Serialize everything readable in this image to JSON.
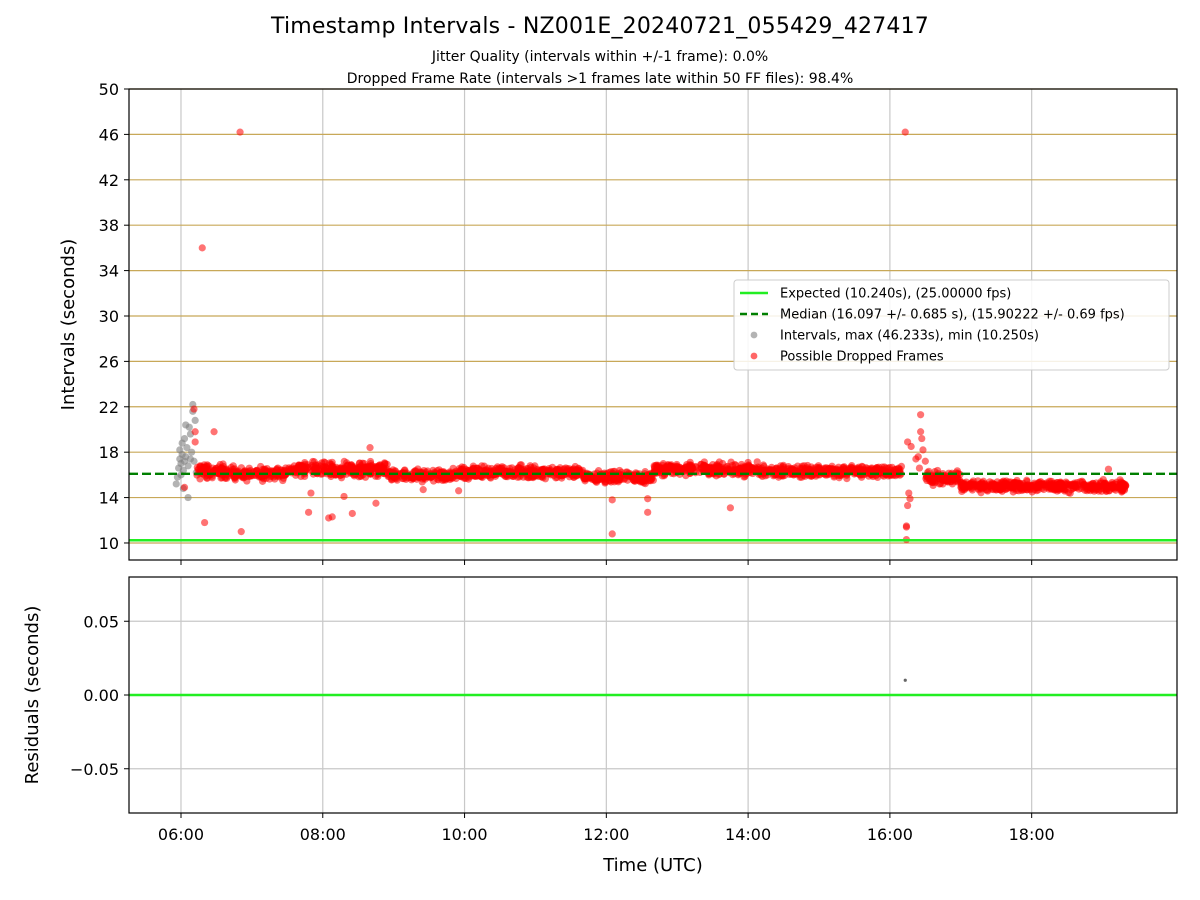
{
  "title": "Timestamp Intervals - NZ001E_20240721_055429_427417",
  "subtitle_lines": [
    "Jitter Quality (intervals within +/-1 frame): 0.0%",
    "Dropped Frame Rate (intervals >1 frames late within 50 FF files): 98.4%"
  ],
  "colors": {
    "expected": "#22ee22",
    "median": "#007f00",
    "intervals": "#808080",
    "dropped": "#ff0000",
    "hgrid_top": "#c8a858",
    "grid": "#c8c8c8"
  },
  "chart_data": [
    {
      "type": "scatter",
      "panel": "top",
      "ylabel": "Intervals (seconds)",
      "ylim": [
        8.5,
        50
      ],
      "yticks": [
        "10",
        "14",
        "18",
        "22",
        "26",
        "30",
        "34",
        "38",
        "42",
        "46",
        "50"
      ],
      "xlim": [
        "05:16",
        "20:03"
      ],
      "xticks": [
        "06:00",
        "08:00",
        "10:00",
        "12:00",
        "14:00",
        "16:00",
        "18:00"
      ],
      "grid": true,
      "legend_position": "center-right",
      "series": [
        {
          "name": "Expected (10.240s), (25.00000 fps)",
          "kind": "hline",
          "y": 10.24
        },
        {
          "name": "Median (16.097 +/- 0.685 s), (15.90222 +/- 0.69 fps)",
          "kind": "dashed-hline",
          "y": 16.097
        },
        {
          "name": "Intervals, max (46.233s), min (10.250s)",
          "kind": "points",
          "points": [
            [
              "05:56",
              15.2
            ],
            [
              "05:57",
              15.8
            ],
            [
              "05:58",
              16.6
            ],
            [
              "05:59",
              17.4
            ],
            [
              "05:59",
              18.2
            ],
            [
              "06:00",
              16.0
            ],
            [
              "06:00",
              17.0
            ],
            [
              "06:01",
              17.8
            ],
            [
              "06:01",
              18.8
            ],
            [
              "06:02",
              16.4
            ],
            [
              "06:02",
              14.8
            ],
            [
              "06:03",
              17.2
            ],
            [
              "06:03",
              19.2
            ],
            [
              "06:04",
              20.4
            ],
            [
              "06:04",
              17.6
            ],
            [
              "06:05",
              18.4
            ],
            [
              "06:06",
              16.8
            ],
            [
              "06:06",
              14.0
            ],
            [
              "06:07",
              20.2
            ],
            [
              "06:08",
              19.6
            ],
            [
              "06:08",
              17.4
            ],
            [
              "06:09",
              18.0
            ],
            [
              "06:10",
              22.2
            ],
            [
              "06:10",
              21.6
            ],
            [
              "06:11",
              17.2
            ],
            [
              "06:12",
              20.8
            ],
            [
              "06:13",
              16.2
            ]
          ]
        },
        {
          "name": "Possible Dropped Frames",
          "kind": "points",
          "dense_band": [
            {
              "from": "06:13",
              "to": "06:45",
              "center": 16.3,
              "spread": 0.55
            },
            {
              "from": "06:45",
              "to": "07:30",
              "center": 16.1,
              "spread": 0.5
            },
            {
              "from": "07:30",
              "to": "08:55",
              "center": 16.5,
              "spread": 0.55
            },
            {
              "from": "08:55",
              "to": "09:50",
              "center": 15.9,
              "spread": 0.45
            },
            {
              "from": "09:50",
              "to": "11:40",
              "center": 16.2,
              "spread": 0.5
            },
            {
              "from": "11:40",
              "to": "12:40",
              "center": 15.8,
              "spread": 0.5
            },
            {
              "from": "12:40",
              "to": "14:10",
              "center": 16.5,
              "spread": 0.5
            },
            {
              "from": "14:10",
              "to": "16:10",
              "center": 16.3,
              "spread": 0.45
            },
            {
              "from": "16:30",
              "to": "17:00",
              "center": 15.7,
              "spread": 0.5
            },
            {
              "from": "17:00",
              "to": "19:20",
              "center": 15.0,
              "spread": 0.45
            }
          ],
          "outliers": [
            [
              "06:50",
              46.2
            ],
            [
              "06:18",
              36.0
            ],
            [
              "06:11",
              21.8
            ],
            [
              "06:12",
              19.8
            ],
            [
              "06:12",
              18.9
            ],
            [
              "06:28",
              19.8
            ],
            [
              "06:20",
              11.8
            ],
            [
              "06:51",
              11.0
            ],
            [
              "06:03",
              14.9
            ],
            [
              "07:48",
              12.7
            ],
            [
              "07:50",
              14.4
            ],
            [
              "08:05",
              12.2
            ],
            [
              "08:08",
              12.3
            ],
            [
              "08:18",
              14.1
            ],
            [
              "08:25",
              12.6
            ],
            [
              "08:45",
              13.5
            ],
            [
              "08:40",
              18.4
            ],
            [
              "09:25",
              14.7
            ],
            [
              "09:55",
              14.6
            ],
            [
              "12:05",
              10.8
            ],
            [
              "12:05",
              13.8
            ],
            [
              "12:35",
              12.7
            ],
            [
              "12:35",
              13.9
            ],
            [
              "13:45",
              13.1
            ],
            [
              "16:13",
              46.2
            ],
            [
              "16:14",
              11.5
            ],
            [
              "16:14",
              11.4
            ],
            [
              "16:14",
              10.3
            ],
            [
              "16:15",
              13.3
            ],
            [
              "16:16",
              14.4
            ],
            [
              "16:17",
              13.9
            ],
            [
              "16:15",
              18.9
            ],
            [
              "16:18",
              18.5
            ],
            [
              "16:26",
              21.3
            ],
            [
              "16:26",
              19.8
            ],
            [
              "16:27",
              19.2
            ],
            [
              "16:28",
              18.2
            ],
            [
              "16:22",
              17.4
            ],
            [
              "16:24",
              17.6
            ],
            [
              "16:30",
              17.2
            ],
            [
              "16:25",
              16.6
            ],
            [
              "19:05",
              16.5
            ],
            [
              "19:15",
              14.7
            ]
          ]
        }
      ]
    },
    {
      "type": "scatter",
      "panel": "bottom",
      "ylabel": "Residuals (seconds)",
      "xlabel": "Time (UTC)",
      "ylim": [
        -0.08,
        0.08
      ],
      "yticks": [
        "0.05",
        "0.00",
        "−0.05"
      ],
      "xlim": [
        "05:16",
        "20:03"
      ],
      "xticks": [
        "06:00",
        "08:00",
        "10:00",
        "12:00",
        "14:00",
        "16:00",
        "18:00"
      ],
      "grid": true,
      "series": [
        {
          "kind": "hline",
          "y": 0.0
        },
        {
          "kind": "points",
          "points": [
            [
              "16:13",
              0.01
            ]
          ]
        }
      ]
    }
  ],
  "legend": [
    {
      "label": "Expected (10.240s), (25.00000 fps)",
      "marker": "line"
    },
    {
      "label": "Median (16.097 +/- 0.685 s), (15.90222 +/- 0.69 fps)",
      "marker": "dashed"
    },
    {
      "label": "Intervals, max (46.233s), min (10.250s)",
      "marker": "gray-dot"
    },
    {
      "label": "Possible Dropped Frames",
      "marker": "red-dot"
    }
  ]
}
